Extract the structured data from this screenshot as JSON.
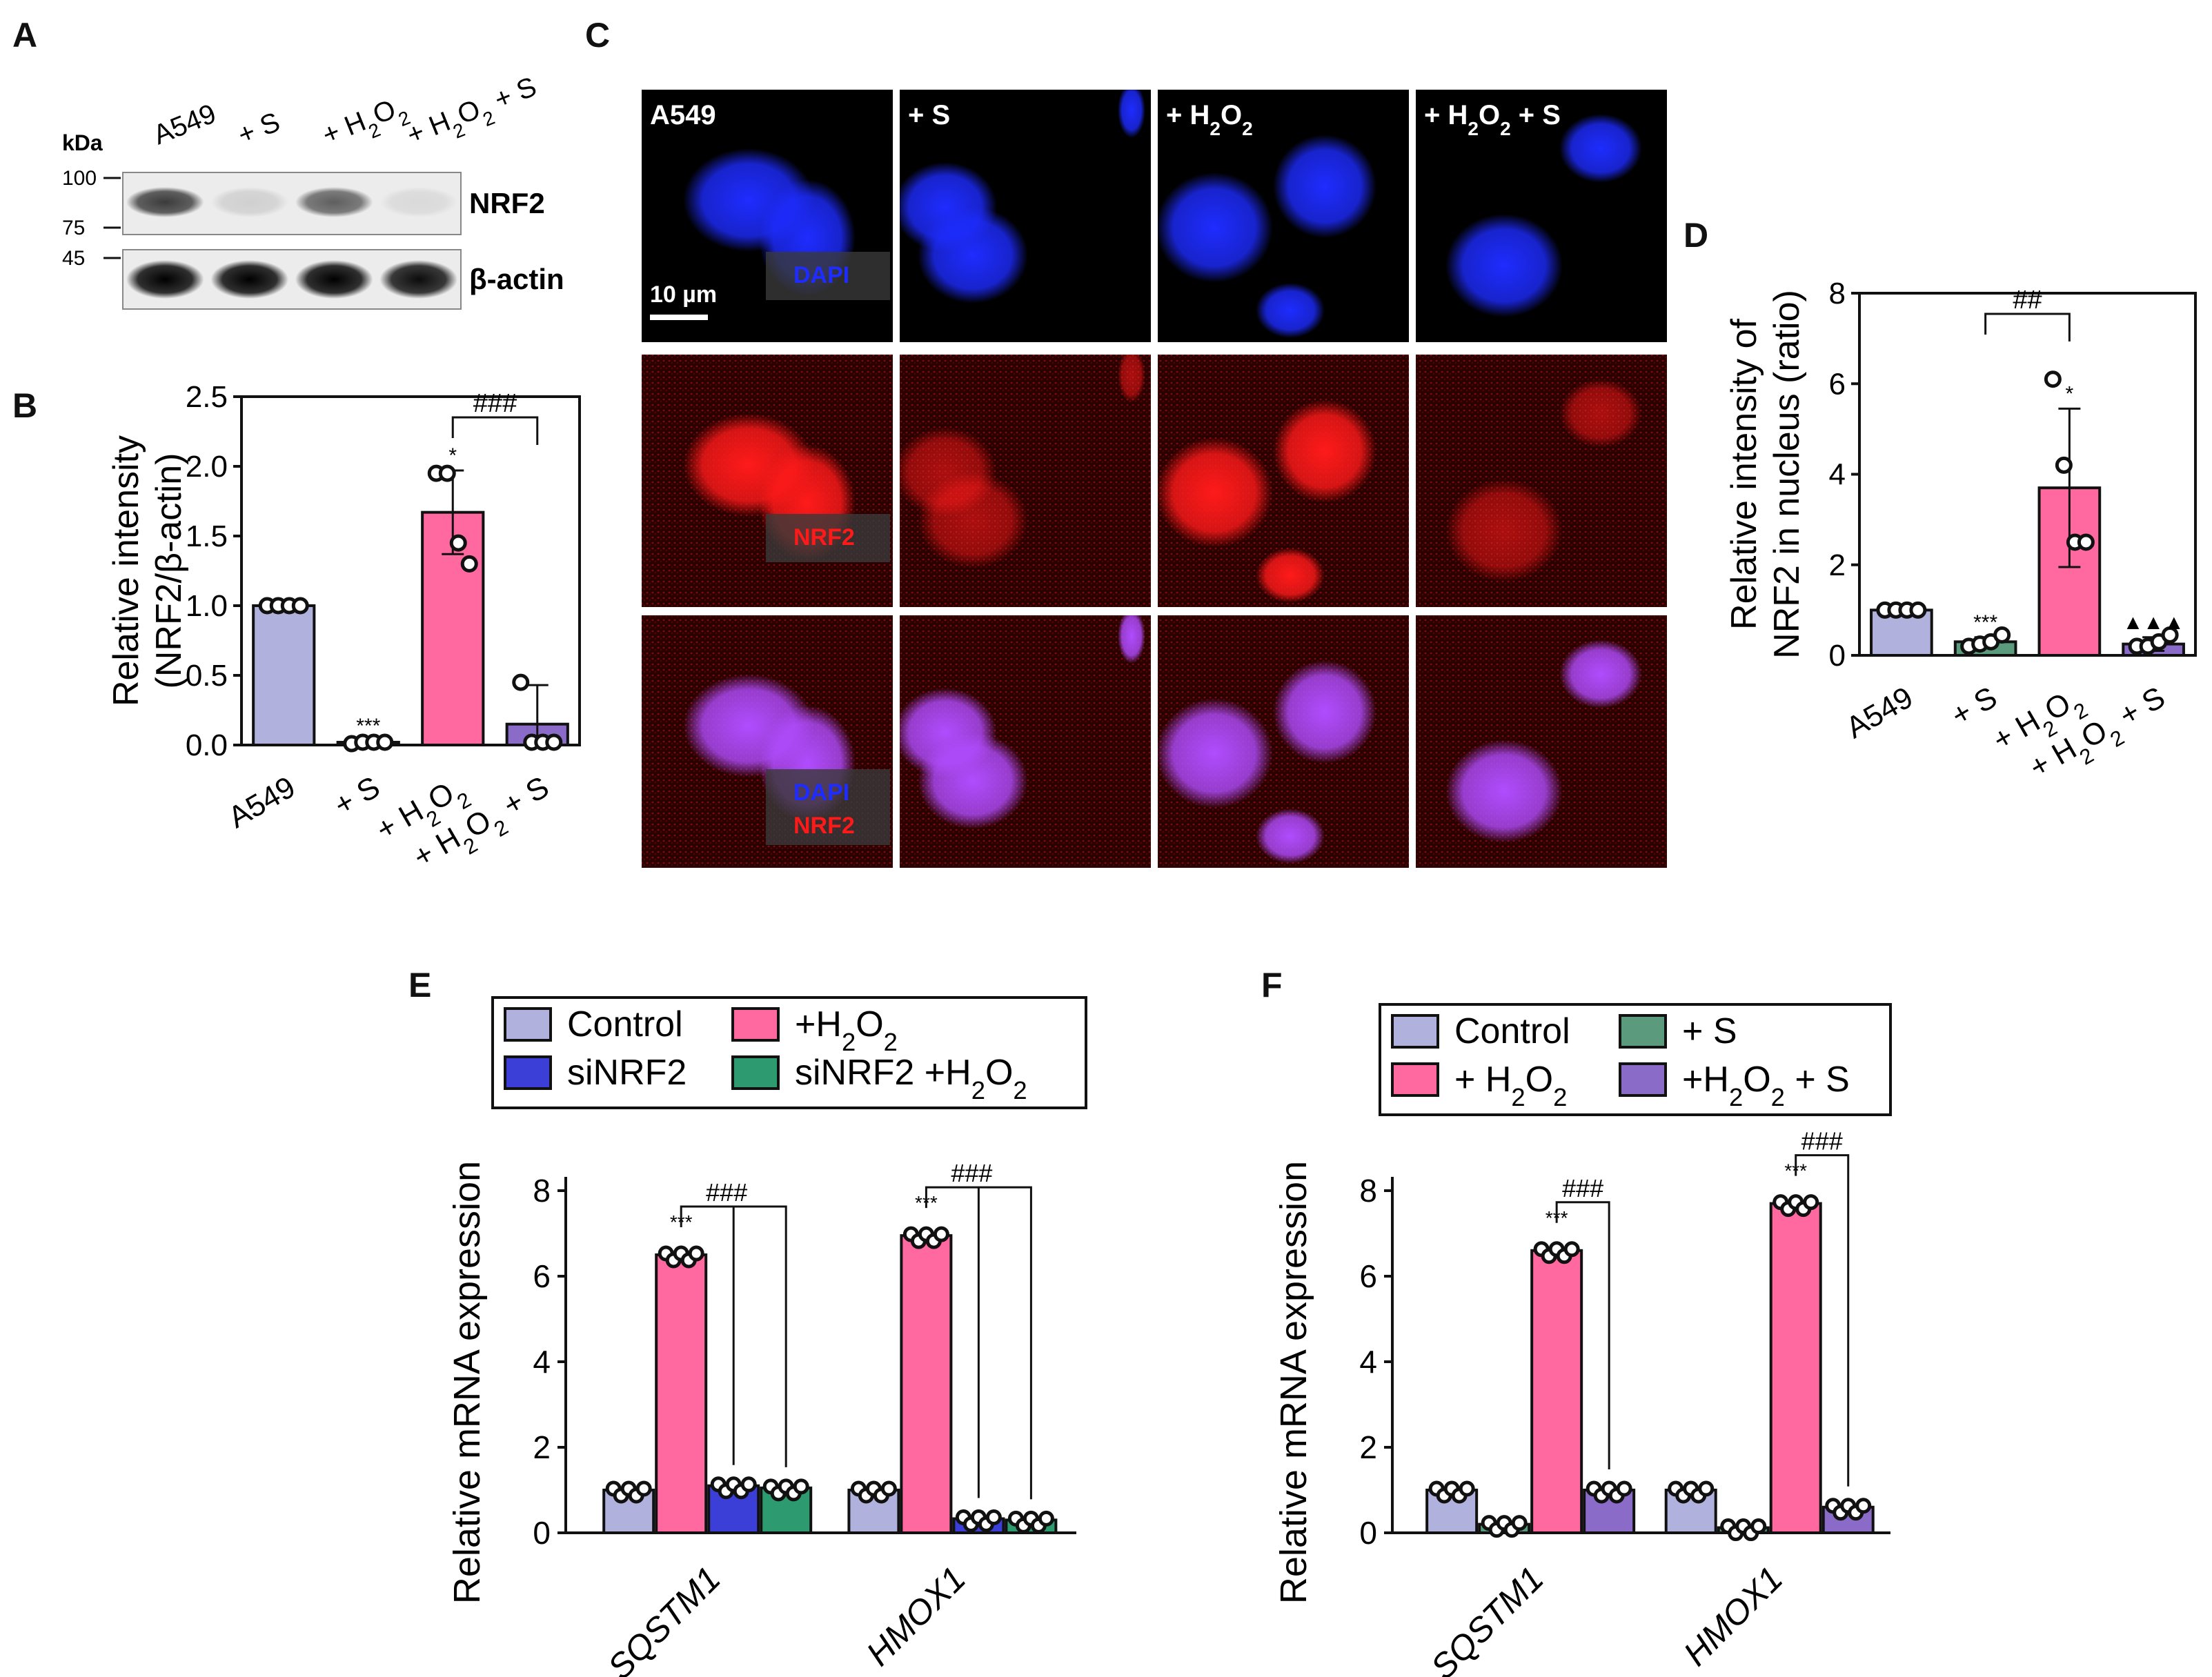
{
  "panels": {
    "A": {
      "label": "A",
      "kda_label": "kDa",
      "markers": [
        "100",
        "75",
        "45"
      ],
      "lanes": [
        "A549",
        "+ S",
        "+ H2O2",
        "+ H2O2 + S"
      ],
      "blots": [
        {
          "name": "NRF2",
          "band_intensity": [
            0.75,
            0.12,
            0.6,
            0.08
          ]
        },
        {
          "name": "β-actin",
          "band_intensity": [
            1.0,
            1.0,
            1.0,
            0.95
          ]
        }
      ]
    },
    "C": {
      "label": "C",
      "columns": [
        "A549",
        "+ S",
        "+ H2O2",
        "+ H2O2 + S"
      ],
      "scale_bar": "10 µm",
      "row_labels": [
        [
          "DAPI"
        ],
        [
          "NRF2"
        ],
        [
          "DAPI",
          "NRF2"
        ]
      ],
      "colors": {
        "dapi": "#1e2cff",
        "nrf2": "#ff1a1a",
        "merge": "#b04cff"
      }
    }
  },
  "chart_data": [
    {
      "panel": "B",
      "type": "bar",
      "categories": [
        "A549",
        "+ S",
        "+ H2O2",
        "+ H2O2 + S"
      ],
      "values": [
        1.0,
        0.02,
        1.67,
        0.15
      ],
      "errors": [
        0.0,
        0.01,
        0.3,
        0.28
      ],
      "points": [
        [
          1.0,
          1.0,
          1.0,
          1.0
        ],
        [
          0.01,
          0.02,
          0.02,
          0.02
        ],
        [
          1.95,
          1.95,
          1.45,
          1.3
        ],
        [
          0.45,
          0.02,
          0.02,
          0.02
        ]
      ],
      "colors": [
        "#b1b1dd",
        "#5b9a7c",
        "#ff69a0",
        "#8a6cc8"
      ],
      "ylabel": [
        "Relative intensity",
        "(NRF2/β-actin)"
      ],
      "ylim": [
        0,
        2.5
      ],
      "yticks": [
        "0.0",
        "0.5",
        "1.0",
        "1.5",
        "2.0",
        "2.5"
      ],
      "significance": [
        {
          "index": 1,
          "text": "***"
        },
        {
          "index": 2,
          "text": "*"
        }
      ],
      "brackets": [
        {
          "from": 2,
          "to": 3,
          "text": "###"
        }
      ]
    },
    {
      "panel": "D",
      "type": "bar",
      "categories": [
        "A549",
        "+ S",
        "+ H2O2",
        "+ H2O2 + S"
      ],
      "values": [
        1.0,
        0.3,
        3.7,
        0.25
      ],
      "errors": [
        0.0,
        0.1,
        1.75,
        0.15
      ],
      "points": [
        [
          1.0,
          1.0,
          1.0,
          1.0
        ],
        [
          0.2,
          0.25,
          0.3,
          0.45
        ],
        [
          6.1,
          4.2,
          2.5,
          2.5
        ],
        [
          0.2,
          0.2,
          0.3,
          0.45
        ]
      ],
      "colors": [
        "#b1b1dd",
        "#5b9a7c",
        "#ff69a0",
        "#8a6cc8"
      ],
      "ylabel": [
        "Relative intensity of",
        "NRF2 in nucleus (ratio)"
      ],
      "ylim": [
        0,
        8
      ],
      "yticks": [
        "0",
        "2",
        "4",
        "6",
        "8"
      ],
      "significance": [
        {
          "index": 1,
          "text": "***"
        },
        {
          "index": 2,
          "text": "*"
        },
        {
          "index": 3,
          "text": "▲▲▲"
        }
      ],
      "brackets": [
        {
          "from": 1,
          "to": 2,
          "text": "##"
        }
      ]
    },
    {
      "panel": "E",
      "type": "bar",
      "categories": [
        "SQSTM1",
        "HMOX1"
      ],
      "series": [
        {
          "name": "Control",
          "values": [
            1.0,
            1.0
          ],
          "color": "#b1b1dd"
        },
        {
          "name": "+H2O2",
          "values": [
            6.5,
            6.95
          ],
          "color": "#ff69a0"
        },
        {
          "name": "siNRF2",
          "values": [
            1.1,
            0.33
          ],
          "color": "#3b3fd8"
        },
        {
          "name": "siNRF2 +H2O2",
          "values": [
            1.05,
            0.3
          ],
          "color": "#2d9b6f"
        }
      ],
      "ylabel": "Relative mRNA expression",
      "ylim": [
        0,
        8
      ],
      "yticks": [
        "0",
        "2",
        "4",
        "6",
        "8"
      ],
      "significance": [
        {
          "category": 0,
          "series": 1,
          "text": "***"
        },
        {
          "category": 1,
          "series": 1,
          "text": "***"
        }
      ],
      "brackets": [
        {
          "category": 0,
          "text": "###"
        },
        {
          "category": 1,
          "text": "###"
        }
      ]
    },
    {
      "panel": "F",
      "type": "bar",
      "categories": [
        "SQSTM1",
        "HMOX1"
      ],
      "series": [
        {
          "name": "Control",
          "values": [
            1.0,
            1.0
          ],
          "color": "#b1b1dd"
        },
        {
          "name": "+ S",
          "values": [
            0.2,
            0.12
          ],
          "color": "#5b9a7c"
        },
        {
          "name": "+ H2O2",
          "values": [
            6.6,
            7.7
          ],
          "color": "#ff69a0"
        },
        {
          "name": "+H2O2 + S",
          "values": [
            1.0,
            0.6
          ],
          "color": "#8a6cc8"
        }
      ],
      "ylabel": "Relative mRNA expression",
      "ylim": [
        0,
        8
      ],
      "yticks": [
        "0",
        "2",
        "4",
        "6",
        "8"
      ],
      "significance": [
        {
          "category": 0,
          "series": 2,
          "text": "***"
        },
        {
          "category": 1,
          "series": 2,
          "text": "***"
        }
      ],
      "brackets": [
        {
          "category": 0,
          "text": "###"
        },
        {
          "category": 1,
          "text": "###"
        }
      ]
    }
  ]
}
